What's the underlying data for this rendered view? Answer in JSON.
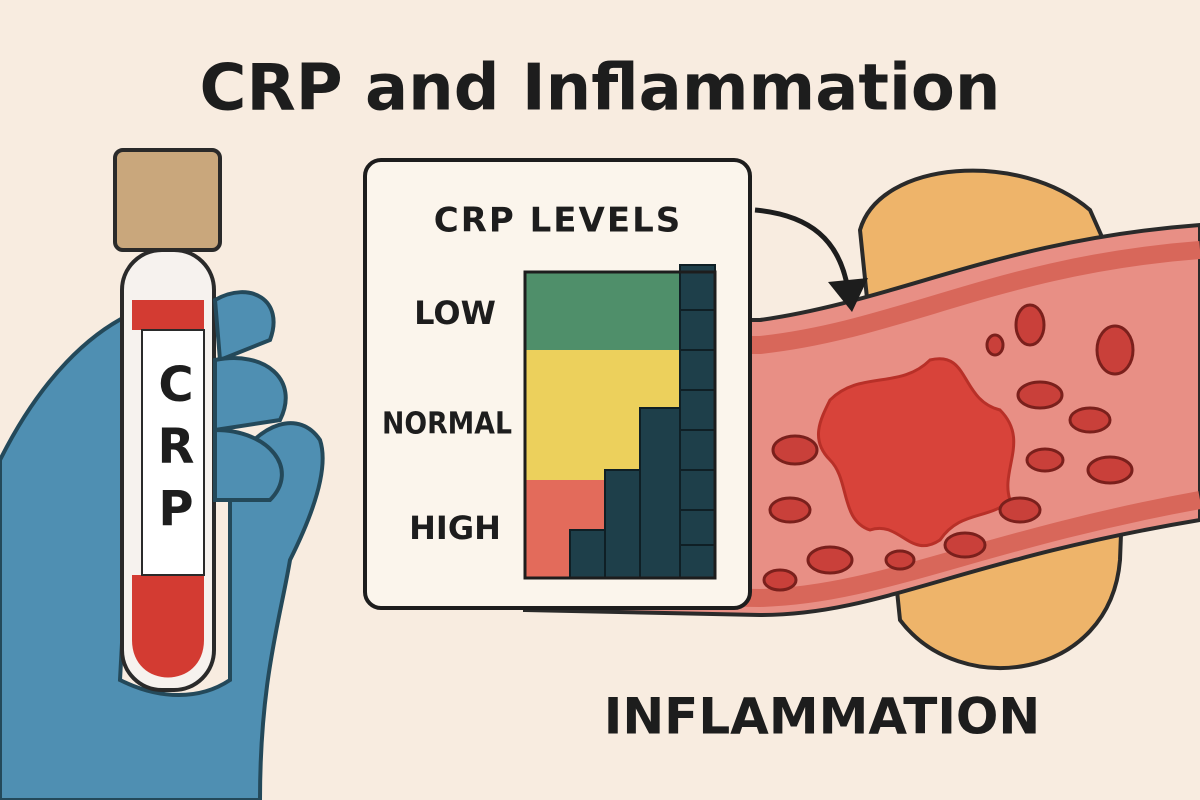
{
  "title": "CRP and Inflammation",
  "tube": {
    "label": "CRP"
  },
  "panel": {
    "title": "CRP LEVELS",
    "levels": [
      "LOW",
      "NORMAL",
      "HIGH"
    ]
  },
  "vessel": {
    "label": "INFLAMMATION"
  }
}
